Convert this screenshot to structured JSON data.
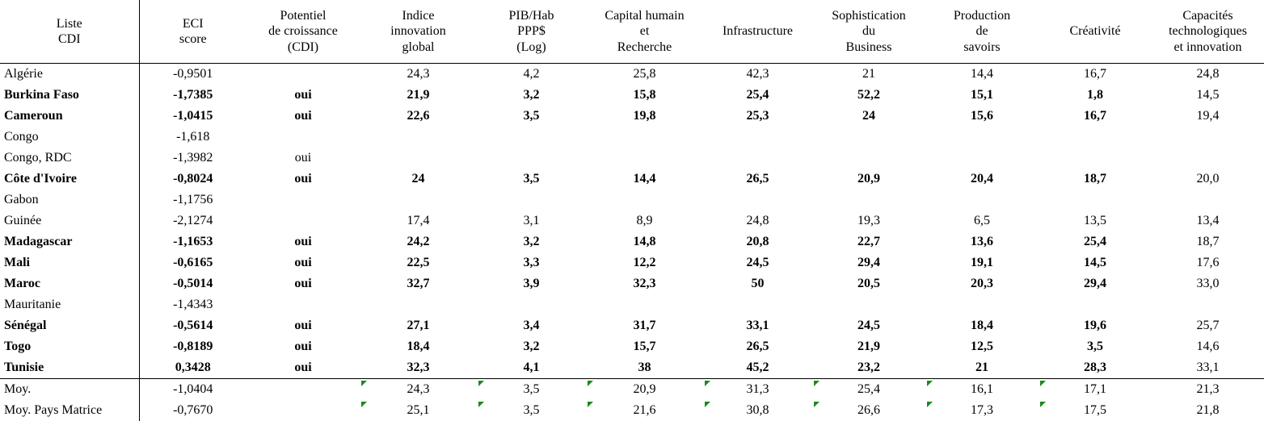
{
  "table": {
    "header": [
      [
        "Liste",
        "CDI"
      ],
      [
        "ECI",
        "score"
      ],
      [
        "Potentiel",
        "de croissance",
        "(CDI)"
      ],
      [
        "Indice",
        "innovation",
        "global"
      ],
      [
        "PIB/Hab",
        "PPP$",
        "(Log)"
      ],
      [
        "Capital humain",
        "et",
        "Recherche"
      ],
      [
        "Infrastructure"
      ],
      [
        "Sophistication",
        "du",
        "Business"
      ],
      [
        "Production",
        "de",
        "savoirs"
      ],
      [
        "Créativité"
      ],
      [
        "Capacités",
        "technologiques",
        "et innovation"
      ]
    ],
    "rows": [
      {
        "bold": false,
        "cells": [
          "Algérie",
          "-0,9501",
          null,
          "24,3",
          "4,2",
          "25,8",
          "42,3",
          "21",
          "14,4",
          "16,7",
          "24,8"
        ]
      },
      {
        "bold": true,
        "cells": [
          "Burkina Faso",
          "-1,7385",
          "oui",
          "21,9",
          "3,2",
          "15,8",
          "25,4",
          "52,2",
          "15,1",
          "1,8",
          "14,5"
        ]
      },
      {
        "bold": true,
        "cells": [
          "Cameroun",
          "-1,0415",
          "oui",
          "22,6",
          "3,5",
          "19,8",
          "25,3",
          "24",
          "15,6",
          "16,7",
          "19,4"
        ]
      },
      {
        "bold": false,
        "cells": [
          "Congo",
          "-1,618",
          null,
          null,
          null,
          null,
          null,
          null,
          null,
          null,
          null
        ]
      },
      {
        "bold": false,
        "cells": [
          "Congo, RDC",
          "-1,3982",
          "oui",
          null,
          null,
          null,
          null,
          null,
          null,
          null,
          null
        ]
      },
      {
        "bold": true,
        "cells": [
          "Côte d'Ivoire",
          "-0,8024",
          "oui",
          "24",
          "3,5",
          "14,4",
          "26,5",
          "20,9",
          "20,4",
          "18,7",
          "20,0"
        ]
      },
      {
        "bold": false,
        "cells": [
          "Gabon",
          "-1,1756",
          null,
          null,
          null,
          null,
          null,
          null,
          null,
          null,
          null
        ]
      },
      {
        "bold": false,
        "cells": [
          "Guinée",
          "-2,1274",
          null,
          "17,4",
          "3,1",
          "8,9",
          "24,8",
          "19,3",
          "6,5",
          "13,5",
          "13,4"
        ]
      },
      {
        "bold": true,
        "cells": [
          "Madagascar",
          "-1,1653",
          "oui",
          "24,2",
          "3,2",
          "14,8",
          "20,8",
          "22,7",
          "13,6",
          "25,4",
          "18,7"
        ]
      },
      {
        "bold": true,
        "cells": [
          "Mali",
          "-0,6165",
          "oui",
          "22,5",
          "3,3",
          "12,2",
          "24,5",
          "29,4",
          "19,1",
          "14,5",
          "17,6"
        ]
      },
      {
        "bold": true,
        "cells": [
          "Maroc",
          "-0,5014",
          "oui",
          "32,7",
          "3,9",
          "32,3",
          "50",
          "20,5",
          "20,3",
          "29,4",
          "33,0"
        ]
      },
      {
        "bold": false,
        "cells": [
          "Mauritanie",
          "-1,4343",
          null,
          null,
          null,
          null,
          null,
          null,
          null,
          null,
          null
        ]
      },
      {
        "bold": true,
        "cells": [
          "Sénégal",
          "-0,5614",
          "oui",
          "27,1",
          "3,4",
          "31,7",
          "33,1",
          "24,5",
          "18,4",
          "19,6",
          "25,7"
        ]
      },
      {
        "bold": true,
        "cells": [
          "Togo",
          "-0,8189",
          "oui",
          "18,4",
          "3,2",
          "15,7",
          "26,5",
          "21,9",
          "12,5",
          "3,5",
          "14,6"
        ]
      },
      {
        "bold": true,
        "cells": [
          "Tunisie",
          "0,3428",
          "oui",
          "32,3",
          "4,1",
          "38",
          "45,2",
          "23,2",
          "21",
          "28,3",
          "33,1"
        ]
      }
    ],
    "footer": [
      {
        "cells": [
          "Moy.",
          "-1,0404",
          null,
          "24,3",
          "3,5",
          "20,9",
          "31,3",
          "25,4",
          "16,1",
          "17,1",
          "21,3"
        ]
      },
      {
        "cells": [
          "Moy. Pays Matrice",
          "-0,7670",
          null,
          "25,1",
          "3,5",
          "21,6",
          "30,8",
          "26,6",
          "17,3",
          "17,5",
          "21,8"
        ]
      }
    ]
  }
}
